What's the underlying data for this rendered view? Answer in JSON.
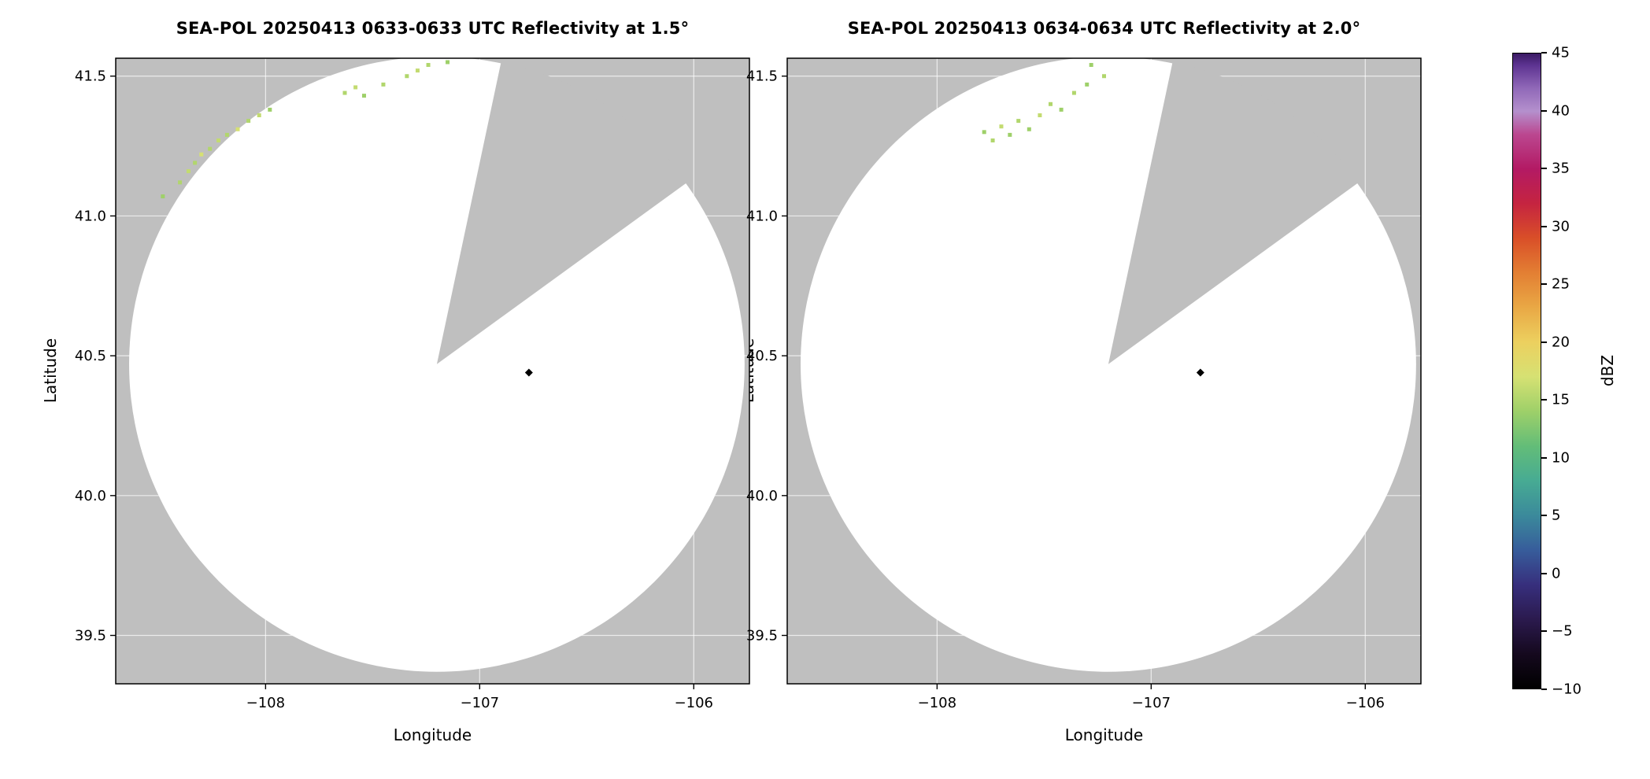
{
  "page": {
    "background": "#ffffff"
  },
  "styles": {
    "outside_fill": "#bfbfbf",
    "inside_fill": "#ffffff",
    "grid_color": "rgba(255,255,255,0.7)",
    "frame_color": "#000000",
    "text_color": "#000000",
    "marker_color": "#000000"
  },
  "colorbar": {
    "label": "dBZ",
    "vmin": -10,
    "vmax": 45,
    "ticks": [
      {
        "v": 45,
        "label": "45"
      },
      {
        "v": 40,
        "label": "40"
      },
      {
        "v": 35,
        "label": "35"
      },
      {
        "v": 30,
        "label": "30"
      },
      {
        "v": 25,
        "label": "25"
      },
      {
        "v": 20,
        "label": "20"
      },
      {
        "v": 15,
        "label": "15"
      },
      {
        "v": 10,
        "label": "10"
      },
      {
        "v": 5,
        "label": "5"
      },
      {
        "v": 0,
        "label": "0"
      },
      {
        "v": -5,
        "label": "−5"
      },
      {
        "v": -10,
        "label": "−10"
      }
    ],
    "stops": [
      {
        "v": -10,
        "c": "#000000"
      },
      {
        "v": -7,
        "c": "#15091e"
      },
      {
        "v": -4,
        "c": "#2b1a4e"
      },
      {
        "v": -1,
        "c": "#372f7d"
      },
      {
        "v": 2,
        "c": "#375d9b"
      },
      {
        "v": 5,
        "c": "#3b8a9b"
      },
      {
        "v": 8,
        "c": "#47ab93"
      },
      {
        "v": 11,
        "c": "#63bd78"
      },
      {
        "v": 14,
        "c": "#9ed069"
      },
      {
        "v": 17,
        "c": "#d6e173"
      },
      {
        "v": 20,
        "c": "#ecd05f"
      },
      {
        "v": 23,
        "c": "#e9a845"
      },
      {
        "v": 26,
        "c": "#e37f33"
      },
      {
        "v": 29,
        "c": "#d94f28"
      },
      {
        "v": 32,
        "c": "#c52440"
      },
      {
        "v": 35,
        "c": "#b31a64"
      },
      {
        "v": 38,
        "c": "#bb4790"
      },
      {
        "v": 40,
        "c": "#b490cd"
      },
      {
        "v": 42,
        "c": "#9068b8"
      },
      {
        "v": 44,
        "c": "#5d3391"
      },
      {
        "v": 45,
        "c": "#3a1a63"
      }
    ]
  },
  "chart_data": [
    {
      "type": "radar_ppi",
      "title": "SEA-POL 20250413 0633-0633 UTC Reflectivity at 1.5°",
      "xlabel": "Longitude",
      "ylabel": "Latitude",
      "xlim": [
        -108.7,
        -105.74
      ],
      "ylim": [
        39.327,
        41.564
      ],
      "xticks": [
        {
          "v": -108,
          "label": "−108"
        },
        {
          "v": -107,
          "label": "−107"
        },
        {
          "v": -106,
          "label": "−106"
        }
      ],
      "yticks": [
        {
          "v": 41.5,
          "label": "41.5"
        },
        {
          "v": 41.0,
          "label": "41.0"
        },
        {
          "v": 40.5,
          "label": "40.5"
        },
        {
          "v": 40.0,
          "label": "40.0"
        },
        {
          "v": 39.5,
          "label": "39.5"
        }
      ],
      "radar": {
        "center_lon": -107.2,
        "center_lat": 40.47,
        "radius_lat_deg": 1.1,
        "wedge_start_az_deg": 12,
        "wedge_end_az_deg": 54
      },
      "marker": {
        "lon": -106.77,
        "lat": 40.44
      },
      "points": [
        {
          "lon": -108.48,
          "lat": 41.07,
          "dbz": 14
        },
        {
          "lon": -108.4,
          "lat": 41.12,
          "dbz": 15
        },
        {
          "lon": -108.36,
          "lat": 41.16,
          "dbz": 16
        },
        {
          "lon": -108.33,
          "lat": 41.19,
          "dbz": 15
        },
        {
          "lon": -108.3,
          "lat": 41.22,
          "dbz": 17
        },
        {
          "lon": -108.26,
          "lat": 41.24,
          "dbz": 15
        },
        {
          "lon": -108.22,
          "lat": 41.27,
          "dbz": 16
        },
        {
          "lon": -108.18,
          "lat": 41.29,
          "dbz": 15
        },
        {
          "lon": -108.13,
          "lat": 41.31,
          "dbz": 17
        },
        {
          "lon": -108.08,
          "lat": 41.34,
          "dbz": 15
        },
        {
          "lon": -108.03,
          "lat": 41.36,
          "dbz": 16
        },
        {
          "lon": -107.98,
          "lat": 41.38,
          "dbz": 14
        },
        {
          "lon": -107.63,
          "lat": 41.44,
          "dbz": 15
        },
        {
          "lon": -107.58,
          "lat": 41.46,
          "dbz": 16
        },
        {
          "lon": -107.54,
          "lat": 41.43,
          "dbz": 14
        },
        {
          "lon": -107.45,
          "lat": 41.47,
          "dbz": 15
        },
        {
          "lon": -107.34,
          "lat": 41.5,
          "dbz": 15
        },
        {
          "lon": -107.29,
          "lat": 41.52,
          "dbz": 16
        },
        {
          "lon": -107.24,
          "lat": 41.54,
          "dbz": 15
        },
        {
          "lon": -107.15,
          "lat": 41.55,
          "dbz": 14
        }
      ]
    },
    {
      "type": "radar_ppi",
      "title": "SEA-POL 20250413 0634-0634 UTC Reflectivity at 2.0°",
      "xlabel": "Longitude",
      "ylabel": "Latitude",
      "xlim": [
        -108.7,
        -105.74
      ],
      "ylim": [
        39.327,
        41.564
      ],
      "xticks": [
        {
          "v": -108,
          "label": "−108"
        },
        {
          "v": -107,
          "label": "−107"
        },
        {
          "v": -106,
          "label": "−106"
        }
      ],
      "yticks": [
        {
          "v": 41.5,
          "label": "41.5"
        },
        {
          "v": 41.0,
          "label": "41.0"
        },
        {
          "v": 40.5,
          "label": "40.5"
        },
        {
          "v": 40.0,
          "label": "40.0"
        },
        {
          "v": 39.5,
          "label": "39.5"
        }
      ],
      "radar": {
        "center_lon": -107.2,
        "center_lat": 40.47,
        "radius_lat_deg": 1.1,
        "wedge_start_az_deg": 12,
        "wedge_end_az_deg": 54
      },
      "marker": {
        "lon": -106.77,
        "lat": 40.44
      },
      "points": [
        {
          "lon": -107.78,
          "lat": 41.3,
          "dbz": 14
        },
        {
          "lon": -107.74,
          "lat": 41.27,
          "dbz": 15
        },
        {
          "lon": -107.7,
          "lat": 41.32,
          "dbz": 16
        },
        {
          "lon": -107.66,
          "lat": 41.29,
          "dbz": 14
        },
        {
          "lon": -107.62,
          "lat": 41.34,
          "dbz": 15
        },
        {
          "lon": -107.57,
          "lat": 41.31,
          "dbz": 14
        },
        {
          "lon": -107.52,
          "lat": 41.36,
          "dbz": 16
        },
        {
          "lon": -107.47,
          "lat": 41.4,
          "dbz": 15
        },
        {
          "lon": -107.42,
          "lat": 41.38,
          "dbz": 14
        },
        {
          "lon": -107.36,
          "lat": 41.44,
          "dbz": 15
        },
        {
          "lon": -107.3,
          "lat": 41.47,
          "dbz": 14
        },
        {
          "lon": -107.28,
          "lat": 41.54,
          "dbz": 14
        },
        {
          "lon": -107.22,
          "lat": 41.5,
          "dbz": 15
        }
      ]
    }
  ]
}
